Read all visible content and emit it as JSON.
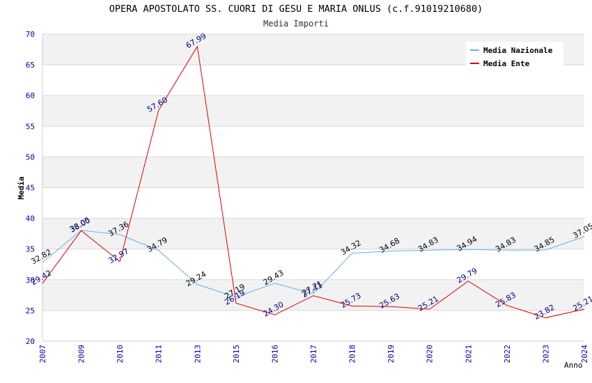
{
  "chart_data": {
    "type": "line",
    "title": "OPERA APOSTOLATO SS. CUORI DI GESU E MARIA ONLUS (c.f.91019210680)",
    "subtitle": "Media Importi",
    "xlabel": "Anno",
    "ylabel": "Media",
    "ylim": [
      20,
      70
    ],
    "yticks": [
      20,
      25,
      30,
      35,
      40,
      45,
      50,
      55,
      60,
      65,
      70
    ],
    "grid": "horizontal bands",
    "legend_position": "top-right",
    "categories": [
      "2007",
      "2009",
      "2010",
      "2011",
      "2013",
      "2015",
      "2016",
      "2017",
      "2018",
      "2019",
      "2020",
      "2021",
      "2022",
      "2023",
      "2024"
    ],
    "series": [
      {
        "name": "Media Nazionale",
        "color": "#6aaee8",
        "label_color": "#000000",
        "values": [
          32.82,
          38.05,
          37.36,
          34.79,
          29.24,
          27.19,
          29.43,
          27.71,
          34.32,
          34.68,
          34.83,
          34.94,
          34.83,
          34.85,
          37.05
        ],
        "labels": [
          "32.82",
          "38.05",
          "37.36",
          "34.79",
          "29.24",
          "27.19",
          "29.43",
          "27.71",
          "34.32",
          "34.68",
          "34.83",
          "34.94",
          "34.83",
          "34.85",
          "37.05"
        ]
      },
      {
        "name": "Media Ente",
        "color": "#dd0000",
        "label_color": "#000080",
        "values": [
          29.42,
          38.0,
          32.97,
          57.6,
          67.99,
          26.19,
          24.3,
          27.41,
          25.73,
          25.63,
          25.21,
          29.79,
          25.83,
          23.82,
          25.21
        ],
        "labels": [
          "29.42",
          "38.00",
          "32.97",
          "57.60",
          "67.99",
          "26.19",
          "24.30",
          "27.41",
          "25.73",
          "25.63",
          "25.21",
          "29.79",
          "25.83",
          "23.82",
          "25.21"
        ]
      }
    ]
  }
}
